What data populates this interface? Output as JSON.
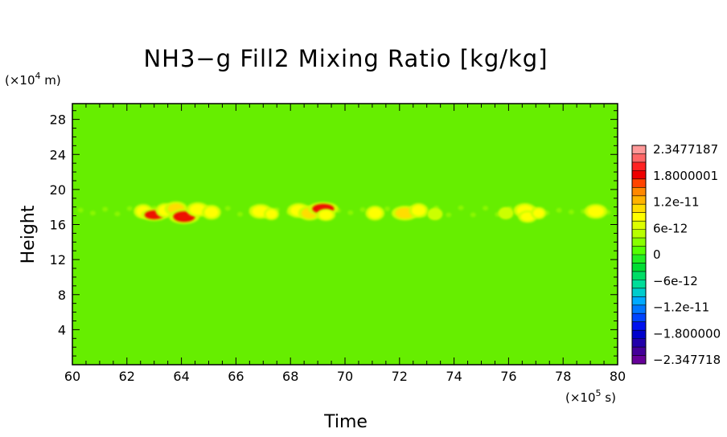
{
  "chart_data": {
    "type": "heatmap",
    "title": "NH3−g Fill2 Mixing Ratio [kg/kg]",
    "xlabel": "Time",
    "ylabel": "Height",
    "x_unit": "(×10",
    "x_unit_exp": "5",
    "x_unit_tail": " s)",
    "y_unit": "(×10",
    "y_unit_exp": "4",
    "y_unit_tail": " m)",
    "xlim": [
      60,
      80
    ],
    "ylim": [
      0,
      29.8
    ],
    "x_ticks": [
      "60",
      "62",
      "64",
      "66",
      "68",
      "70",
      "72",
      "74",
      "76",
      "78",
      "80"
    ],
    "y_ticks": [
      "4",
      "8",
      "12",
      "16",
      "20",
      "24",
      "28"
    ],
    "background_value": 0,
    "colorbar": {
      "labels": [
        "2.3477187",
        "1.8000001",
        "1.2e-11",
        "6e-12",
        "0",
        "−6e-12",
        "−1.2e-11",
        "−1.800000",
        "−2.347718"
      ],
      "colors": [
        "#ff9999",
        "#ff6666",
        "#ff2222",
        "#ee0000",
        "#ff4400",
        "#ff8800",
        "#ffb300",
        "#ffdd00",
        "#ffff00",
        "#ddff00",
        "#b8ff00",
        "#88ff00",
        "#55ff00",
        "#22ee22",
        "#00dd33",
        "#00dd66",
        "#00dd99",
        "#00cccc",
        "#00aaff",
        "#0077ff",
        "#0044ff",
        "#0011ee",
        "#0000cc",
        "#2200aa",
        "#440099",
        "#660099"
      ]
    },
    "features": [
      {
        "x": 62.6,
        "y": 17.5,
        "w": 0.25,
        "h": 0.6,
        "level": 0.25
      },
      {
        "x": 63.0,
        "y": 17.1,
        "w": 0.35,
        "h": 0.5,
        "level": 0.85
      },
      {
        "x": 63.4,
        "y": 17.6,
        "w": 0.25,
        "h": 0.6,
        "level": 0.3
      },
      {
        "x": 63.8,
        "y": 17.8,
        "w": 0.3,
        "h": 0.6,
        "level": 0.35
      },
      {
        "x": 64.1,
        "y": 16.9,
        "w": 0.4,
        "h": 0.6,
        "level": 0.8
      },
      {
        "x": 64.6,
        "y": 17.7,
        "w": 0.3,
        "h": 0.6,
        "level": 0.3
      },
      {
        "x": 65.1,
        "y": 17.4,
        "w": 0.25,
        "h": 0.6,
        "level": 0.2
      },
      {
        "x": 66.9,
        "y": 17.5,
        "w": 0.3,
        "h": 0.6,
        "level": 0.25
      },
      {
        "x": 67.3,
        "y": 17.2,
        "w": 0.2,
        "h": 0.5,
        "level": 0.2
      },
      {
        "x": 68.3,
        "y": 17.6,
        "w": 0.3,
        "h": 0.6,
        "level": 0.3
      },
      {
        "x": 68.7,
        "y": 17.3,
        "w": 0.3,
        "h": 0.6,
        "level": 0.35
      },
      {
        "x": 69.2,
        "y": 17.8,
        "w": 0.4,
        "h": 0.55,
        "level": 0.9
      },
      {
        "x": 69.3,
        "y": 17.1,
        "w": 0.25,
        "h": 0.5,
        "level": 0.3
      },
      {
        "x": 71.1,
        "y": 17.3,
        "w": 0.25,
        "h": 0.6,
        "level": 0.2
      },
      {
        "x": 72.2,
        "y": 17.3,
        "w": 0.35,
        "h": 0.6,
        "level": 0.45
      },
      {
        "x": 72.7,
        "y": 17.6,
        "w": 0.25,
        "h": 0.6,
        "level": 0.25
      },
      {
        "x": 73.3,
        "y": 17.2,
        "w": 0.2,
        "h": 0.5,
        "level": 0.15
      },
      {
        "x": 75.9,
        "y": 17.3,
        "w": 0.2,
        "h": 0.5,
        "level": 0.15
      },
      {
        "x": 76.6,
        "y": 17.6,
        "w": 0.3,
        "h": 0.6,
        "level": 0.3
      },
      {
        "x": 76.7,
        "y": 16.9,
        "w": 0.25,
        "h": 0.5,
        "level": 0.3
      },
      {
        "x": 77.1,
        "y": 17.3,
        "w": 0.2,
        "h": 0.5,
        "level": 0.2
      },
      {
        "x": 79.2,
        "y": 17.5,
        "w": 0.3,
        "h": 0.6,
        "level": 0.25
      }
    ]
  }
}
